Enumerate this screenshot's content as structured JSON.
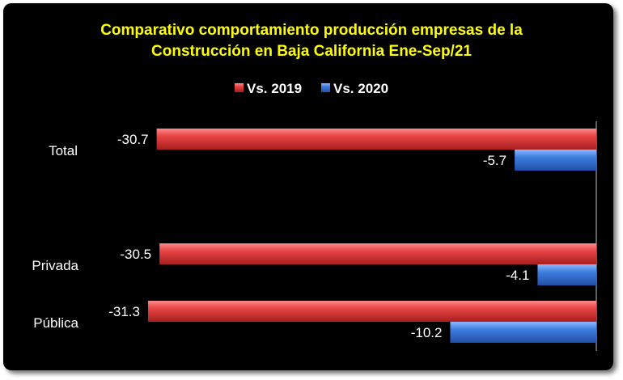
{
  "chart_data": {
    "type": "bar",
    "orientation": "horizontal",
    "title_lines": [
      "Comparativo comportamiento producción empresas de la",
      "Construcción en Baja California Ene-Sep/21"
    ],
    "categories": [
      "Total",
      "Privada",
      "Pública"
    ],
    "series": [
      {
        "name": "Vs. 2019",
        "values": [
          -30.7,
          -30.5,
          -31.3
        ],
        "color": "#e23b3b"
      },
      {
        "name": "Vs. 2020",
        "values": [
          -5.7,
          -4.1,
          -10.2
        ],
        "color": "#3b78d6"
      }
    ],
    "xlim": [
      -31.3,
      0
    ],
    "legend": "top",
    "grid": false,
    "background": "#000000",
    "title_color": "#ffff00"
  }
}
